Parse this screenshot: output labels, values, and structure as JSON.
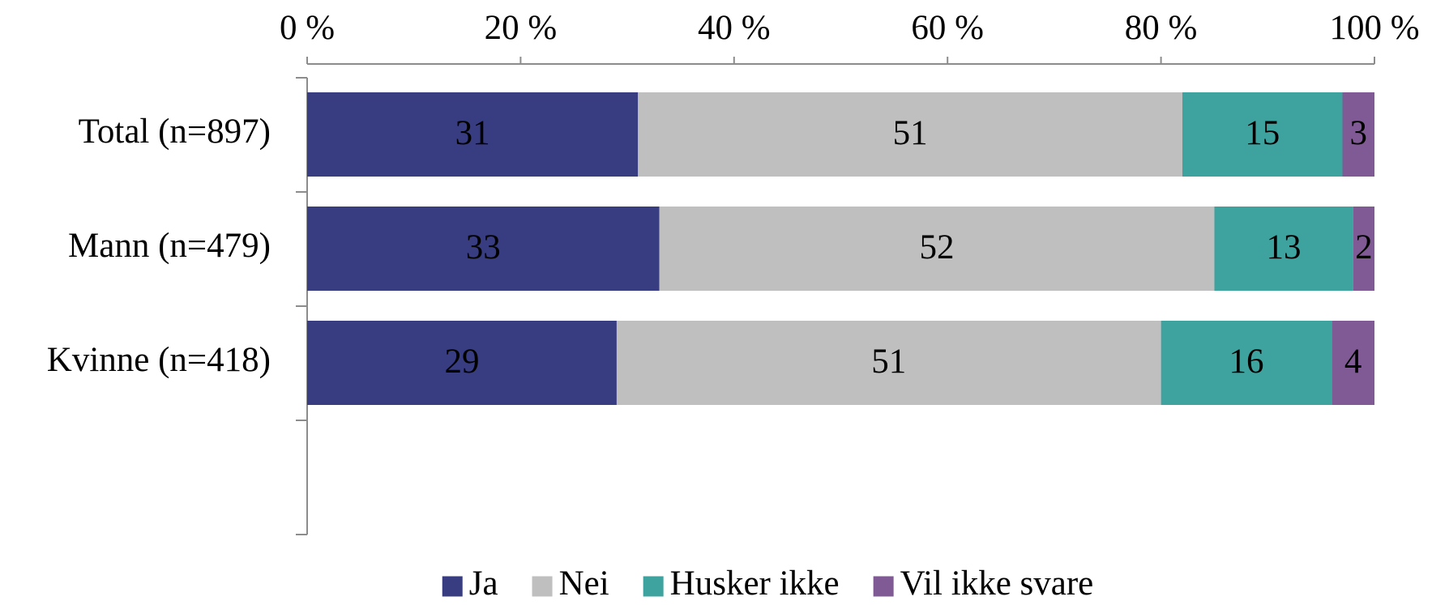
{
  "chart_data": {
    "type": "stacked_barh",
    "categories": [
      "Total (n=897)",
      "Mann (n=479)",
      "Kvinne (n=418)"
    ],
    "series": [
      {
        "name": "Ja",
        "color": "#383c80",
        "values": [
          31,
          33,
          29
        ]
      },
      {
        "name": "Nei",
        "color": "#bfbfbf",
        "values": [
          51,
          52,
          51
        ]
      },
      {
        "name": "Husker ikke",
        "color": "#3ea39f",
        "values": [
          15,
          13,
          16
        ]
      },
      {
        "name": "Vil ikke svare",
        "color": "#7f5a94",
        "values": [
          3,
          2,
          4
        ]
      }
    ],
    "xlim": [
      0,
      100
    ],
    "xticks": [
      {
        "value": 0,
        "label": "0 %"
      },
      {
        "value": 20,
        "label": "20 %"
      },
      {
        "value": 40,
        "label": "40 %"
      },
      {
        "value": 60,
        "label": "60 %"
      },
      {
        "value": 80,
        "label": "80 %"
      },
      {
        "value": 100,
        "label": "100 %"
      }
    ],
    "legend": "bottom"
  }
}
